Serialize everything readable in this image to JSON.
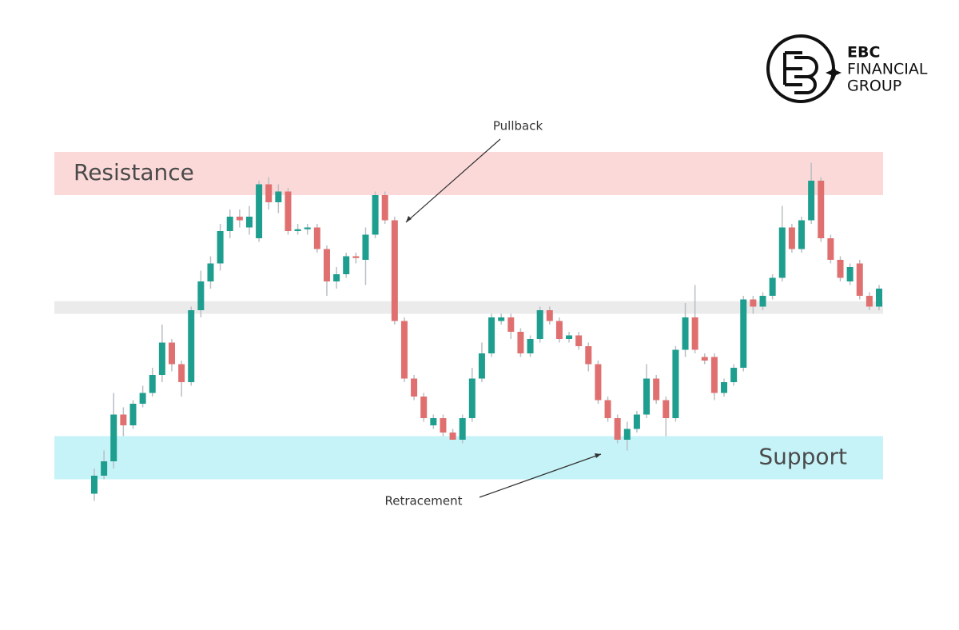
{
  "chart_data": {
    "type": "candlestick",
    "ylim": [
      0,
      100
    ],
    "up_color": "#1e9e8f",
    "down_color": "#e07070",
    "zones": [
      {
        "label": "Resistance",
        "range": [
          88,
          100
        ],
        "color": "#fcd9d9"
      },
      {
        "range": [
          55,
          58.5
        ],
        "color": "#ebebeb"
      },
      {
        "label": "Support",
        "range": [
          9,
          21
        ],
        "color": "#c5f3f8"
      }
    ],
    "annotations": [
      "Pullback",
      "Retracement"
    ],
    "open": [
      5,
      10,
      14,
      27,
      24,
      30,
      33,
      38,
      47,
      41,
      36,
      56,
      64,
      69,
      78,
      82,
      79,
      76,
      91,
      86,
      89,
      78,
      78.5,
      79,
      73,
      64,
      66,
      71,
      70,
      77,
      88,
      81,
      53,
      37,
      32,
      24,
      26,
      22,
      20,
      26,
      37,
      44,
      53,
      54,
      50,
      44,
      48,
      56,
      53,
      48,
      49,
      46,
      41,
      31,
      26,
      20,
      23,
      27,
      37,
      31,
      26,
      45,
      54,
      43,
      43,
      33,
      36,
      40,
      59,
      57,
      60,
      65,
      79,
      73,
      81,
      92,
      76,
      70,
      64,
      69,
      60,
      57
    ],
    "high": [
      12,
      17,
      33,
      29,
      31,
      35,
      40,
      52,
      48,
      42,
      57,
      67,
      71,
      80,
      84,
      84,
      85,
      92,
      93,
      91,
      90,
      80,
      80,
      80,
      74,
      68,
      72,
      72,
      79,
      89,
      89,
      82,
      54,
      38,
      33,
      27,
      27,
      23,
      27,
      40,
      47,
      55,
      55,
      55,
      51,
      49,
      57,
      57,
      54,
      50,
      50,
      47,
      42,
      32,
      27,
      25,
      28,
      41,
      38,
      32,
      46,
      58,
      63,
      44,
      44,
      37,
      41,
      60,
      60,
      61,
      66,
      85,
      80,
      82,
      97,
      93,
      77,
      71,
      69,
      70,
      61,
      63
    ],
    "low": [
      3,
      9,
      12,
      21,
      23,
      29,
      32,
      36,
      39,
      32,
      35,
      54,
      62,
      67,
      76,
      79,
      77,
      75,
      84,
      83,
      77,
      77,
      77,
      72,
      60,
      62,
      65,
      69,
      63,
      76,
      80,
      52,
      36,
      31,
      25,
      23,
      21,
      20,
      19,
      25,
      36,
      43,
      52,
      48,
      43,
      43,
      47,
      52,
      47,
      47,
      45,
      39,
      30,
      25,
      19,
      17,
      22,
      26,
      30,
      21,
      25,
      43,
      44,
      41,
      31,
      32,
      35,
      39,
      55,
      56,
      59,
      64,
      72,
      72,
      80,
      75,
      69,
      64,
      63,
      59,
      56,
      56
    ],
    "close": [
      10,
      14,
      27,
      24,
      30,
      33,
      38,
      47,
      41,
      36,
      56,
      64,
      69,
      78,
      82,
      81,
      82,
      91,
      86,
      89,
      78,
      78.5,
      79,
      73,
      64,
      66,
      71,
      70.5,
      77,
      88,
      81,
      53,
      37,
      32,
      26,
      26,
      22,
      20,
      26,
      37,
      44,
      54,
      54,
      50,
      44,
      48,
      56,
      53,
      48,
      49,
      46,
      41,
      31,
      26,
      20,
      23,
      27,
      37,
      31,
      26,
      45,
      54,
      45,
      42,
      33,
      36,
      40,
      59,
      57,
      60,
      65,
      79,
      73,
      81,
      92,
      76,
      70,
      65,
      68,
      60,
      57,
      62
    ]
  },
  "logo": {
    "lines": [
      "EBC",
      "FINANCIAL",
      "GROUP"
    ]
  }
}
